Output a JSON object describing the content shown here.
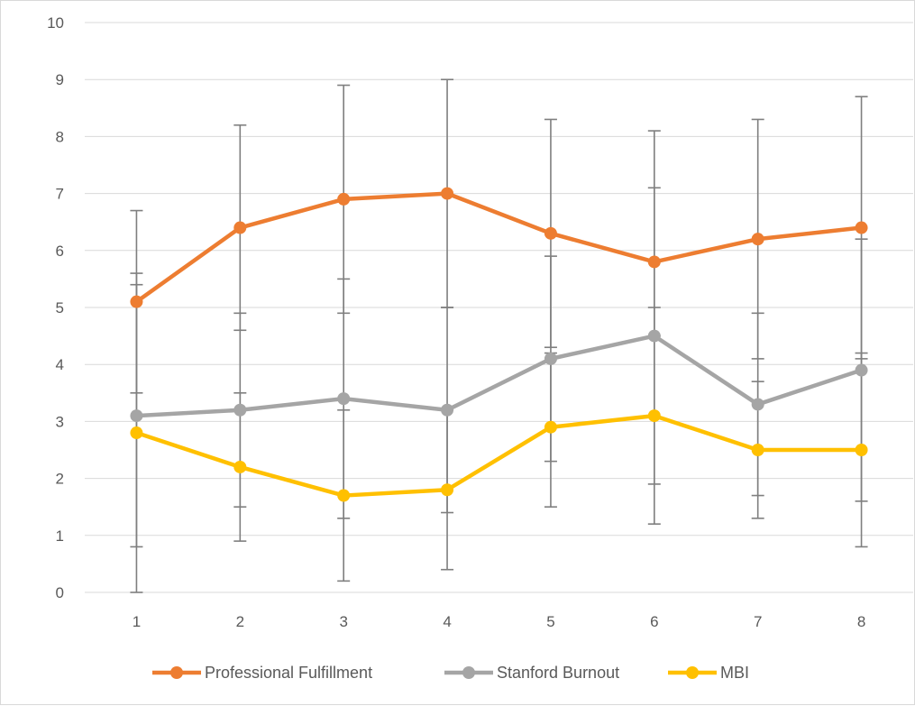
{
  "chart_data": {
    "type": "line",
    "title": "",
    "xlabel": "",
    "ylabel": "",
    "categories": [
      "1",
      "2",
      "3",
      "4",
      "5",
      "6",
      "7",
      "8"
    ],
    "ylim": [
      0,
      10
    ],
    "y_ticks": [
      "0",
      "1",
      "2",
      "3",
      "4",
      "5",
      "6",
      "7",
      "8",
      "9",
      "10"
    ],
    "grid": "horizontal",
    "legend_position": "bottom",
    "series": [
      {
        "name": "Professional Fulfillment",
        "color": "#ed7d31",
        "values": [
          5.1,
          6.4,
          6.9,
          7.0,
          6.3,
          5.8,
          6.2,
          6.4
        ],
        "error_low": [
          3.5,
          4.6,
          4.9,
          5.0,
          4.3,
          4.5,
          4.1,
          4.1
        ],
        "error_high": [
          6.7,
          8.2,
          8.9,
          9.0,
          8.3,
          7.1,
          8.3,
          8.7
        ]
      },
      {
        "name": "Stanford Burnout",
        "color": "#a5a5a5",
        "values": [
          3.1,
          3.2,
          3.4,
          3.2,
          4.1,
          4.5,
          3.3,
          3.9
        ],
        "error_low": [
          0.8,
          1.5,
          1.3,
          1.4,
          2.3,
          1.9,
          1.7,
          1.6
        ],
        "error_high": [
          5.4,
          4.9,
          5.5,
          5.0,
          5.9,
          8.1,
          4.9,
          6.2
        ]
      },
      {
        "name": "MBI",
        "color": "#ffc000",
        "values": [
          2.8,
          2.2,
          1.7,
          1.8,
          2.9,
          3.1,
          2.5,
          2.5
        ],
        "error_low": [
          0.0,
          0.9,
          0.2,
          0.4,
          1.5,
          1.2,
          1.3,
          0.8
        ],
        "error_high": [
          5.6,
          3.5,
          3.2,
          3.2,
          4.2,
          5.0,
          3.7,
          4.2
        ]
      }
    ]
  },
  "colors": {
    "gridline": "#d9d9d9",
    "error_bar": "#7f7f7f",
    "axis_text": "#595959"
  }
}
